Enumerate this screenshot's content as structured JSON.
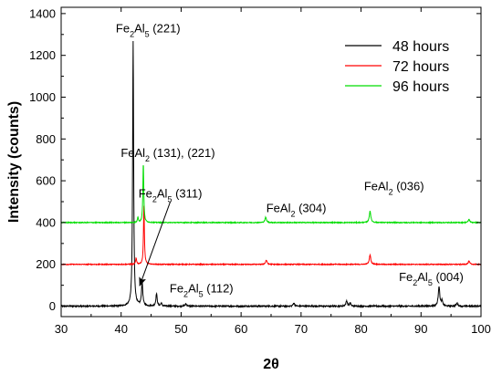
{
  "chart_data": {
    "type": "line",
    "xlabel": "2θ",
    "ylabel": "Intensity (counts)",
    "xlim": [
      30,
      100
    ],
    "ylim": [
      -50,
      1430
    ],
    "xticks": [
      30,
      40,
      50,
      60,
      70,
      80,
      90,
      100
    ],
    "yticks": [
      0,
      200,
      400,
      600,
      800,
      1000,
      1200,
      1400
    ],
    "grid": false,
    "legend_position": "top-right",
    "series": [
      {
        "name": "48 hours",
        "color": "#000000",
        "baseline": 0,
        "noise": 3,
        "peaks": [
          {
            "x": 42.0,
            "height": 1265,
            "width": 0.2
          },
          {
            "x": 43.5,
            "height": 115,
            "width": 0.25
          },
          {
            "x": 45.9,
            "height": 60,
            "width": 0.25
          },
          {
            "x": 46.7,
            "height": 15,
            "width": 0.2
          },
          {
            "x": 50.8,
            "height": 10,
            "width": 0.3
          },
          {
            "x": 68.8,
            "height": 15,
            "width": 0.3
          },
          {
            "x": 77.6,
            "height": 25,
            "width": 0.3
          },
          {
            "x": 78.2,
            "height": 15,
            "width": 0.25
          },
          {
            "x": 93.0,
            "height": 95,
            "width": 0.3
          },
          {
            "x": 93.5,
            "height": 25,
            "width": 0.25
          },
          {
            "x": 96.0,
            "height": 15,
            "width": 0.3
          }
        ]
      },
      {
        "name": "72 hours",
        "color": "#ff0000",
        "baseline": 200,
        "noise": 2,
        "peaks": [
          {
            "x": 43.8,
            "height": 280,
            "width": 0.18
          },
          {
            "x": 42.5,
            "height": 30,
            "width": 0.2
          },
          {
            "x": 64.2,
            "height": 20,
            "width": 0.3
          },
          {
            "x": 81.5,
            "height": 45,
            "width": 0.3
          },
          {
            "x": 98.0,
            "height": 15,
            "width": 0.3
          }
        ]
      },
      {
        "name": "96 hours",
        "color": "#00dd00",
        "baseline": 400,
        "noise": 2,
        "peaks": [
          {
            "x": 43.7,
            "height": 285,
            "width": 0.18
          },
          {
            "x": 42.8,
            "height": 25,
            "width": 0.2
          },
          {
            "x": 64.1,
            "height": 25,
            "width": 0.3
          },
          {
            "x": 81.5,
            "height": 55,
            "width": 0.3
          },
          {
            "x": 98.0,
            "height": 15,
            "width": 0.3
          }
        ]
      }
    ],
    "annotations": [
      {
        "key": "fe2al5_221",
        "parts": [
          [
            "Fe",
            ""
          ],
          [
            "2",
            "sub"
          ],
          [
            "Al",
            ""
          ],
          [
            "5",
            "sub"
          ],
          [
            " (221)",
            ""
          ]
        ],
        "x": 44.5,
        "y": 1310
      },
      {
        "key": "feal2_131_221",
        "parts": [
          [
            "FeAl",
            ""
          ],
          [
            "2",
            "sub"
          ],
          [
            " (131), (221)",
            ""
          ]
        ],
        "x": 47.8,
        "y": 715
      },
      {
        "key": "fe2al5_311",
        "parts": [
          [
            "Fe",
            ""
          ],
          [
            "2",
            "sub"
          ],
          [
            "Al",
            ""
          ],
          [
            "5",
            "sub"
          ],
          [
            " (311)",
            ""
          ]
        ],
        "x": 48.2,
        "y": 520
      },
      {
        "key": "feal2_304",
        "parts": [
          [
            "FeAl",
            ""
          ],
          [
            "2",
            "sub"
          ],
          [
            " (304)",
            ""
          ]
        ],
        "x": 69.2,
        "y": 450
      },
      {
        "key": "feal2_036",
        "parts": [
          [
            "FeAl",
            ""
          ],
          [
            "2",
            "sub"
          ],
          [
            " (036)",
            ""
          ]
        ],
        "x": 85.5,
        "y": 555
      },
      {
        "key": "fe2al5_112",
        "parts": [
          [
            "Fe",
            ""
          ],
          [
            "2",
            "sub"
          ],
          [
            "Al",
            ""
          ],
          [
            "5",
            "sub"
          ],
          [
            " (112)",
            ""
          ]
        ],
        "x": 53.4,
        "y": 65
      },
      {
        "key": "fe2al5_004",
        "parts": [
          [
            "Fe",
            ""
          ],
          [
            "2",
            "sub"
          ],
          [
            "Al",
            ""
          ],
          [
            "5",
            "sub"
          ],
          [
            " (004)",
            ""
          ]
        ],
        "x": 91.7,
        "y": 120
      }
    ],
    "arrow": {
      "from": [
        48.2,
        500
      ],
      "to": [
        43.1,
        98
      ]
    }
  }
}
